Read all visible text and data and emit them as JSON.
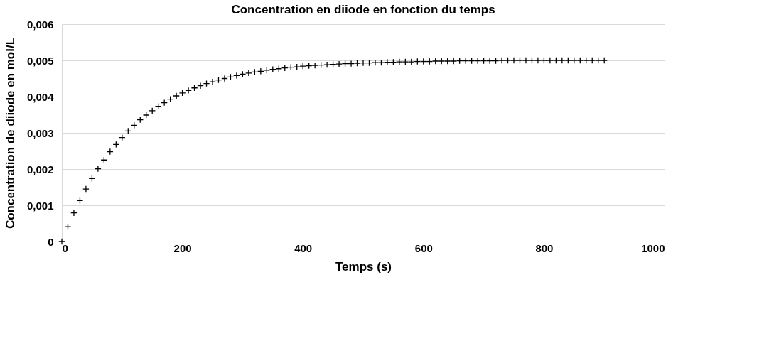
{
  "chart_data": {
    "type": "scatter",
    "title": "Concentration en diiode en fonction du temps",
    "xlabel": "Temps (s)",
    "ylabel": "Concentration de diiode en mol/L",
    "x": [
      0,
      10,
      20,
      30,
      40,
      50,
      60,
      70,
      80,
      90,
      100,
      110,
      120,
      130,
      140,
      150,
      160,
      170,
      180,
      190,
      200,
      210,
      220,
      230,
      240,
      250,
      260,
      270,
      280,
      290,
      300,
      310,
      320,
      330,
      340,
      350,
      360,
      370,
      380,
      390,
      400,
      410,
      420,
      430,
      440,
      450,
      460,
      470,
      480,
      490,
      500,
      510,
      520,
      530,
      540,
      550,
      560,
      570,
      580,
      590,
      600,
      610,
      620,
      630,
      640,
      650,
      660,
      670,
      680,
      690,
      700,
      710,
      720,
      730,
      740,
      750,
      760,
      770,
      780,
      790,
      800,
      810,
      820,
      830,
      840,
      850,
      860,
      870,
      880,
      890,
      900
    ],
    "series": [
      {
        "color": "#000000",
        "values": [
          0,
          0.00041,
          0.00079,
          0.00113,
          0.00145,
          0.00174,
          0.00201,
          0.00225,
          0.00248,
          0.00268,
          0.00287,
          0.00305,
          0.00321,
          0.00336,
          0.00349,
          0.00361,
          0.00373,
          0.00383,
          0.00393,
          0.00402,
          0.0041,
          0.00417,
          0.00424,
          0.0043,
          0.00436,
          0.00441,
          0.00446,
          0.0045,
          0.00454,
          0.00458,
          0.00462,
          0.00465,
          0.00468,
          0.0047,
          0.00473,
          0.00475,
          0.00477,
          0.00479,
          0.00481,
          0.00482,
          0.00484,
          0.00485,
          0.00486,
          0.00487,
          0.00488,
          0.00489,
          0.0049,
          0.00491,
          0.00491,
          0.00492,
          0.00493,
          0.00493,
          0.00494,
          0.00494,
          0.00495,
          0.00495,
          0.00496,
          0.00496,
          0.00496,
          0.00497,
          0.00497,
          0.00497,
          0.00498,
          0.00498,
          0.00498,
          0.00498,
          0.00499,
          0.00499,
          0.00499,
          0.00499,
          0.00499,
          0.00499,
          0.00499,
          0.005,
          0.005,
          0.005,
          0.005,
          0.005,
          0.005,
          0.005,
          0.005,
          0.005,
          0.005,
          0.005,
          0.005,
          0.005,
          0.005,
          0.005,
          0.005,
          0.005,
          0.005
        ]
      }
    ],
    "xlim": [
      0,
      1000
    ],
    "xticks": [
      0,
      200,
      400,
      600,
      800,
      1000
    ],
    "ylim": [
      0,
      0.006
    ],
    "yticks": [
      {
        "value": 0,
        "label": "0"
      },
      {
        "value": 0.001,
        "label": "0,001"
      },
      {
        "value": 0.002,
        "label": "0,002"
      },
      {
        "value": 0.003,
        "label": "0,003"
      },
      {
        "value": 0.004,
        "label": "0,004"
      },
      {
        "value": 0.005,
        "label": "0,005"
      },
      {
        "value": 0.006,
        "label": "0,006"
      }
    ],
    "grid": true,
    "marker": "cross"
  }
}
